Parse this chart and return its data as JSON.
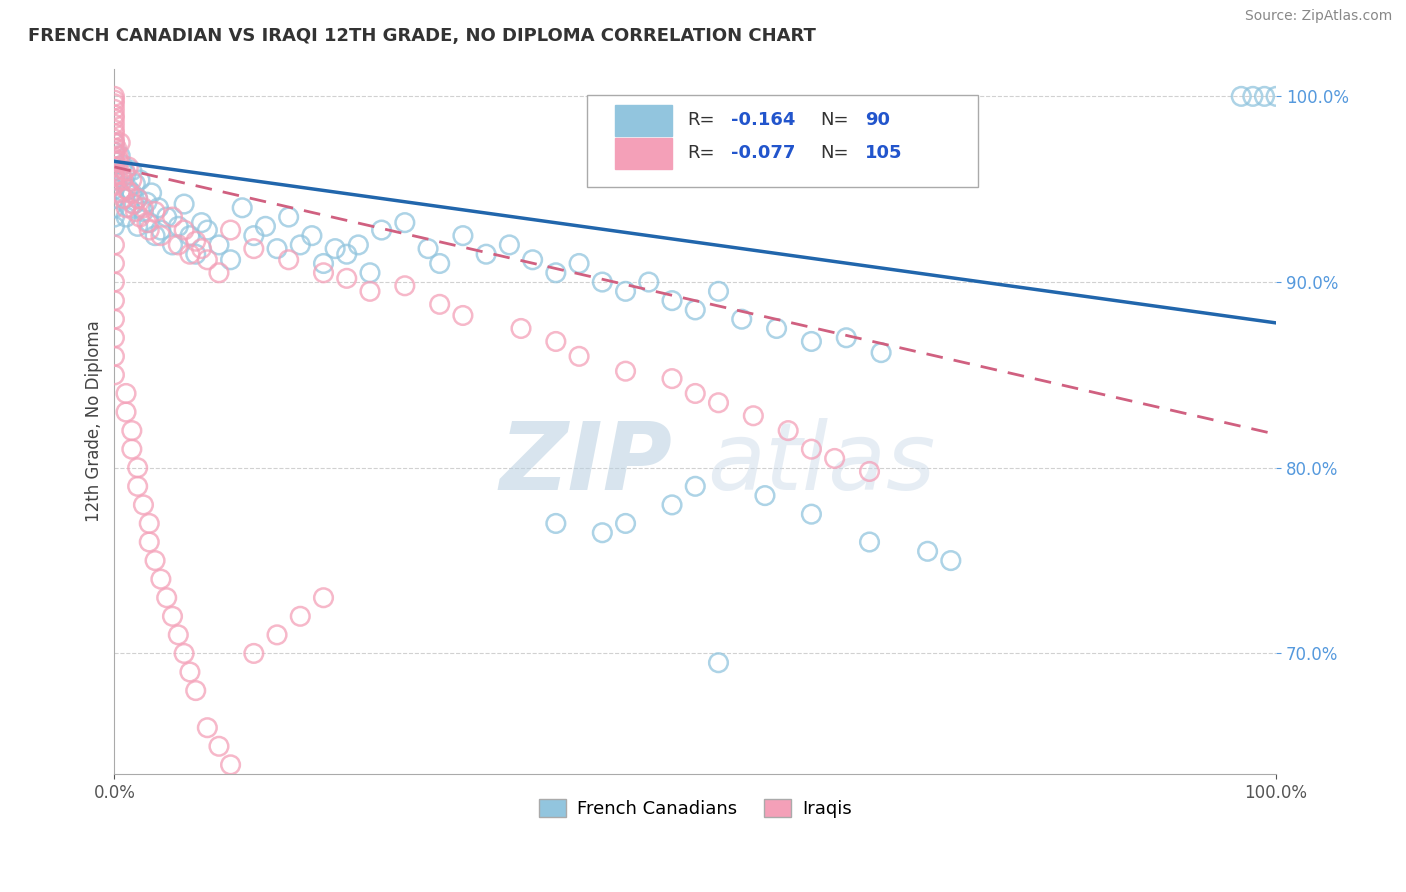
{
  "title": "FRENCH CANADIAN VS IRAQI 12TH GRADE, NO DIPLOMA CORRELATION CHART",
  "source": "Source: ZipAtlas.com",
  "ylabel": "12th Grade, No Diploma",
  "legend_r1_val": "-0.164",
  "legend_n1_val": "90",
  "legend_r2_val": "-0.077",
  "legend_n2_val": "105",
  "blue_color": "#92c5de",
  "pink_color": "#f4a0b8",
  "blue_line_color": "#2166ac",
  "pink_line_color": "#d06080",
  "watermark_zip": "ZIP",
  "watermark_atlas": "atlas",
  "xlim": [
    0.0,
    1.0
  ],
  "ylim": [
    0.635,
    1.015
  ],
  "yticks": [
    0.7,
    0.8,
    0.9,
    1.0
  ],
  "ytick_labels": [
    "70.0%",
    "80.0%",
    "90.0%",
    "100.0%"
  ],
  "xtick_labels": [
    "0.0%",
    "100.0%"
  ],
  "xticks": [
    0.0,
    1.0
  ],
  "blue_line_x0": 0.0,
  "blue_line_y0": 0.965,
  "blue_line_x1": 1.0,
  "blue_line_y1": 0.878,
  "pink_line_x0": 0.0,
  "pink_line_y0": 0.962,
  "pink_line_x1": 1.0,
  "pink_line_y1": 0.818,
  "blue_x": [
    0.0,
    0.0,
    0.0,
    0.0,
    0.0,
    0.0,
    0.0,
    0.0,
    0.0,
    0.0,
    0.005,
    0.007,
    0.008,
    0.009,
    0.01,
    0.01,
    0.012,
    0.013,
    0.015,
    0.015,
    0.017,
    0.018,
    0.02,
    0.02,
    0.022,
    0.025,
    0.028,
    0.03,
    0.032,
    0.035,
    0.038,
    0.04,
    0.045,
    0.05,
    0.055,
    0.06,
    0.065,
    0.07,
    0.075,
    0.08,
    0.09,
    0.1,
    0.11,
    0.12,
    0.13,
    0.14,
    0.15,
    0.16,
    0.17,
    0.18,
    0.19,
    0.2,
    0.21,
    0.22,
    0.23,
    0.25,
    0.27,
    0.28,
    0.3,
    0.32,
    0.34,
    0.36,
    0.38,
    0.4,
    0.42,
    0.44,
    0.46,
    0.48,
    0.5,
    0.52,
    0.54,
    0.57,
    0.6,
    0.63,
    0.66,
    0.38,
    0.42,
    0.44,
    0.48,
    0.5,
    0.56,
    0.6,
    0.65,
    0.7,
    0.72,
    0.97,
    0.98,
    0.99,
    1.0,
    0.52
  ],
  "blue_y": [
    0.97,
    0.965,
    0.96,
    0.955,
    0.95,
    0.945,
    0.94,
    0.975,
    0.935,
    0.93,
    0.968,
    0.963,
    0.955,
    0.945,
    0.958,
    0.935,
    0.95,
    0.94,
    0.948,
    0.96,
    0.942,
    0.953,
    0.945,
    0.93,
    0.955,
    0.938,
    0.943,
    0.932,
    0.948,
    0.925,
    0.94,
    0.928,
    0.935,
    0.92,
    0.93,
    0.942,
    0.925,
    0.915,
    0.932,
    0.928,
    0.92,
    0.912,
    0.94,
    0.925,
    0.93,
    0.918,
    0.935,
    0.92,
    0.925,
    0.91,
    0.918,
    0.915,
    0.92,
    0.905,
    0.928,
    0.932,
    0.918,
    0.91,
    0.925,
    0.915,
    0.92,
    0.912,
    0.905,
    0.91,
    0.9,
    0.895,
    0.9,
    0.89,
    0.885,
    0.895,
    0.88,
    0.875,
    0.868,
    0.87,
    0.862,
    0.77,
    0.765,
    0.77,
    0.78,
    0.79,
    0.785,
    0.775,
    0.76,
    0.755,
    0.75,
    1.0,
    1.0,
    1.0,
    1.0,
    0.695
  ],
  "pink_x": [
    0.0,
    0.0,
    0.0,
    0.0,
    0.0,
    0.0,
    0.0,
    0.0,
    0.0,
    0.0,
    0.0,
    0.0,
    0.0,
    0.0,
    0.0,
    0.0,
    0.0,
    0.0,
    0.0,
    0.0,
    0.002,
    0.003,
    0.003,
    0.004,
    0.005,
    0.005,
    0.006,
    0.007,
    0.008,
    0.009,
    0.01,
    0.01,
    0.012,
    0.013,
    0.015,
    0.016,
    0.018,
    0.02,
    0.022,
    0.025,
    0.028,
    0.03,
    0.035,
    0.04,
    0.05,
    0.055,
    0.06,
    0.065,
    0.07,
    0.075,
    0.08,
    0.09,
    0.1,
    0.12,
    0.15,
    0.18,
    0.2,
    0.22,
    0.25,
    0.28,
    0.3,
    0.35,
    0.38,
    0.4,
    0.44,
    0.48,
    0.5,
    0.52,
    0.55,
    0.58,
    0.6,
    0.62,
    0.65,
    0.0,
    0.0,
    0.0,
    0.0,
    0.0,
    0.0,
    0.0,
    0.0,
    0.01,
    0.01,
    0.015,
    0.015,
    0.02,
    0.02,
    0.025,
    0.03,
    0.03,
    0.035,
    0.04,
    0.045,
    0.05,
    0.055,
    0.06,
    0.065,
    0.07,
    0.08,
    0.09,
    0.1,
    0.12,
    0.14,
    0.16,
    0.18
  ],
  "pink_y": [
    1.0,
    0.998,
    0.996,
    0.993,
    0.99,
    0.988,
    0.985,
    0.982,
    0.98,
    0.977,
    0.975,
    0.972,
    0.97,
    0.967,
    0.965,
    0.962,
    0.96,
    0.957,
    0.955,
    0.952,
    0.972,
    0.968,
    0.958,
    0.965,
    0.975,
    0.948,
    0.958,
    0.955,
    0.945,
    0.96,
    0.95,
    0.94,
    0.962,
    0.948,
    0.955,
    0.942,
    0.938,
    0.945,
    0.935,
    0.94,
    0.932,
    0.928,
    0.938,
    0.925,
    0.935,
    0.92,
    0.928,
    0.915,
    0.922,
    0.918,
    0.912,
    0.905,
    0.928,
    0.918,
    0.912,
    0.905,
    0.902,
    0.895,
    0.898,
    0.888,
    0.882,
    0.875,
    0.868,
    0.86,
    0.852,
    0.848,
    0.84,
    0.835,
    0.828,
    0.82,
    0.81,
    0.805,
    0.798,
    0.92,
    0.91,
    0.9,
    0.89,
    0.88,
    0.87,
    0.86,
    0.85,
    0.84,
    0.83,
    0.82,
    0.81,
    0.8,
    0.79,
    0.78,
    0.77,
    0.76,
    0.75,
    0.74,
    0.73,
    0.72,
    0.71,
    0.7,
    0.69,
    0.68,
    0.66,
    0.65,
    0.64,
    0.7,
    0.71,
    0.72,
    0.73
  ]
}
